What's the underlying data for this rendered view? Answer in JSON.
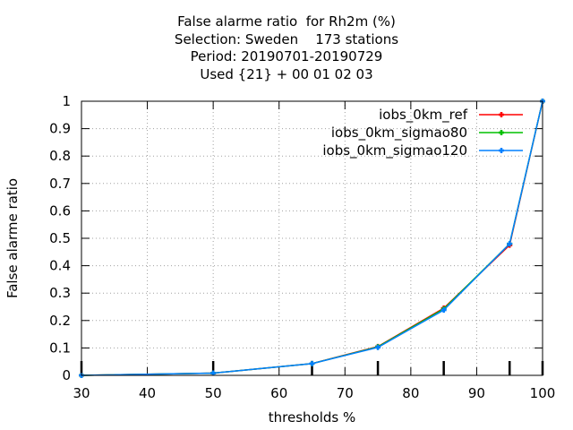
{
  "chart_data": {
    "type": "line",
    "title_lines": [
      "False alarme ratio  for Rh2m (%)",
      "Selection: Sweden    173 stations",
      "Period: 20190701-20190729",
      "Used {21} + 00 01 02 03"
    ],
    "xlabel": "thresholds %",
    "ylabel": "False alarme ratio",
    "xlim": [
      30,
      100
    ],
    "ylim": [
      0,
      1
    ],
    "x_ticks": [
      "30",
      "40",
      "50",
      "60",
      "70",
      "80",
      "90",
      "100"
    ],
    "y_ticks": [
      "0",
      "0.1",
      "0.2",
      "0.3",
      "0.4",
      "0.5",
      "0.6",
      "0.7",
      "0.8",
      "0.9",
      "1"
    ],
    "grid": true,
    "legend_position": "top-right",
    "series": [
      {
        "name": "iobs_0km_ref",
        "color": "#ff0000",
        "x": [
          30,
          50,
          65,
          75,
          85,
          95,
          100
        ],
        "y": [
          0.0,
          0.008,
          0.043,
          0.105,
          0.245,
          0.475,
          1.0
        ]
      },
      {
        "name": "iobs_0km_sigmao80",
        "color": "#00c000",
        "x": [
          30,
          50,
          65,
          75,
          85,
          95,
          100
        ],
        "y": [
          0.0,
          0.008,
          0.043,
          0.104,
          0.242,
          0.48,
          1.0
        ]
      },
      {
        "name": "iobs_0km_sigmao120",
        "color": "#0080ff",
        "x": [
          30,
          50,
          65,
          75,
          85,
          95,
          100
        ],
        "y": [
          0.0,
          0.008,
          0.043,
          0.102,
          0.238,
          0.48,
          1.0
        ]
      }
    ]
  }
}
